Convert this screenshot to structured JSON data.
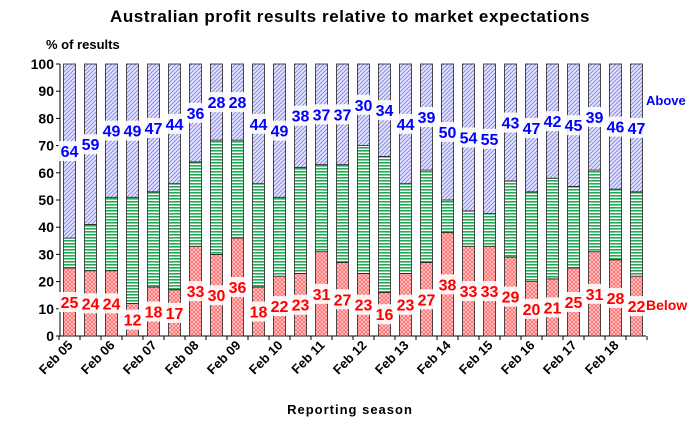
{
  "chart_data": {
    "type": "bar",
    "stacked": true,
    "title": "Australian profit results relative to market expectations",
    "ylabel": "% of results",
    "xlabel": "Reporting season",
    "ylim": [
      0,
      100
    ],
    "yticks": [
      0,
      10,
      20,
      30,
      40,
      50,
      60,
      70,
      80,
      90,
      100
    ],
    "categories": [
      "Feb 05",
      "Aug 05",
      "Feb 06",
      "Aug 06",
      "Feb 07",
      "Aug 07",
      "Feb 08",
      "Aug 08",
      "Feb 09",
      "Aug 09",
      "Feb 10",
      "Aug 10",
      "Feb 11",
      "Aug 11",
      "Feb 12",
      "Aug 12",
      "Feb 13",
      "Aug 13",
      "Feb 14",
      "Aug 14",
      "Feb 15",
      "Aug 15",
      "Feb 16",
      "Aug 16",
      "Feb 17",
      "Aug 17",
      "Feb 18",
      "Aug 18"
    ],
    "tick_labels": [
      "Feb 05",
      "Feb 06",
      "Feb 07",
      "Feb 08",
      "Feb 09",
      "Feb 10",
      "Feb 11",
      "Feb 12",
      "Feb 13",
      "Feb 14",
      "Feb 15",
      "Feb 16",
      "Feb 17",
      "Feb 18"
    ],
    "series": [
      {
        "name": "Below",
        "color": "#ff3333",
        "values": [
          25,
          24,
          24,
          12,
          18,
          17,
          33,
          30,
          36,
          18,
          22,
          23,
          31,
          27,
          23,
          16,
          23,
          27,
          38,
          33,
          33,
          29,
          20,
          21,
          25,
          31,
          28,
          22
        ]
      },
      {
        "name": "In line",
        "color": "#33aa55",
        "values": [
          11,
          17,
          27,
          39,
          35,
          39,
          31,
          42,
          36,
          38,
          29,
          39,
          32,
          36,
          47,
          50,
          33,
          34,
          12,
          13,
          12,
          28,
          33,
          37,
          30,
          30,
          26,
          31
        ]
      },
      {
        "name": "Above",
        "color": "#9999ee",
        "values": [
          64,
          59,
          49,
          49,
          47,
          44,
          36,
          28,
          28,
          44,
          49,
          38,
          37,
          37,
          30,
          34,
          44,
          39,
          50,
          54,
          55,
          43,
          47,
          42,
          45,
          39,
          46,
          47
        ]
      }
    ],
    "legend": {
      "above": "Above",
      "below": "Below"
    },
    "colors": {
      "title": "#000000",
      "above_label": "#0000ff",
      "below_label": "#ff0000"
    }
  }
}
